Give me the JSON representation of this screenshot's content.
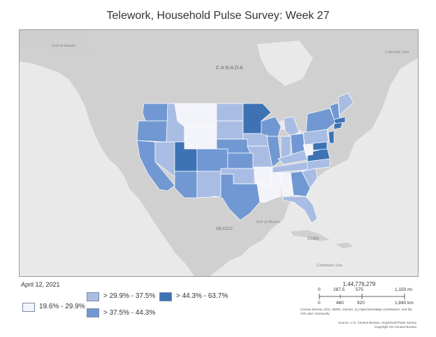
{
  "title": "Telework, Household Pulse Survey: Week 27",
  "date": "April 12, 2021",
  "colors": {
    "ocean": "#e9e9e9",
    "land": "#cfcfcf",
    "border": "#ffffff",
    "bin1": "#f3f3fa",
    "bin2": "#a9bde4",
    "bin3": "#7198d2",
    "bin4": "#3d73b5"
  },
  "legend": [
    {
      "label": "19.6% - 29.9%",
      "color": "#f3f3fa"
    },
    {
      "label": "> 29.9% - 37.5%",
      "color": "#a9bde4"
    },
    {
      "label": "> 37.5% - 44.3%",
      "color": "#7198d2"
    },
    {
      "label": "> 44.3% - 63.7%",
      "color": "#3d73b5"
    }
  ],
  "map_labels": {
    "canada": "CANADA",
    "mexico": "MEXICO",
    "gulf_alaska": "Gulf of Alaska",
    "labrador_sea": "Labrador Sea",
    "gulf_mexico": "Gulf of Mexico",
    "cuba": "CUBA",
    "caribbean": "Caribbean Sea"
  },
  "scale": {
    "ratio": "1:44,776,279",
    "mi_ticks": [
      "0",
      "287.5",
      "575",
      "1,150 mi"
    ],
    "km_ticks": [
      "0",
      "460",
      "920",
      "1,840 km"
    ]
  },
  "credits": "Census Bureau, Esri, HERE, Garmin, (c) OpenStreetMap contributors, and the GIS user community",
  "source": [
    "Source: U.S. Census Bureau, Household Pulse Survey",
    "Copyright US Census Bureau"
  ]
}
